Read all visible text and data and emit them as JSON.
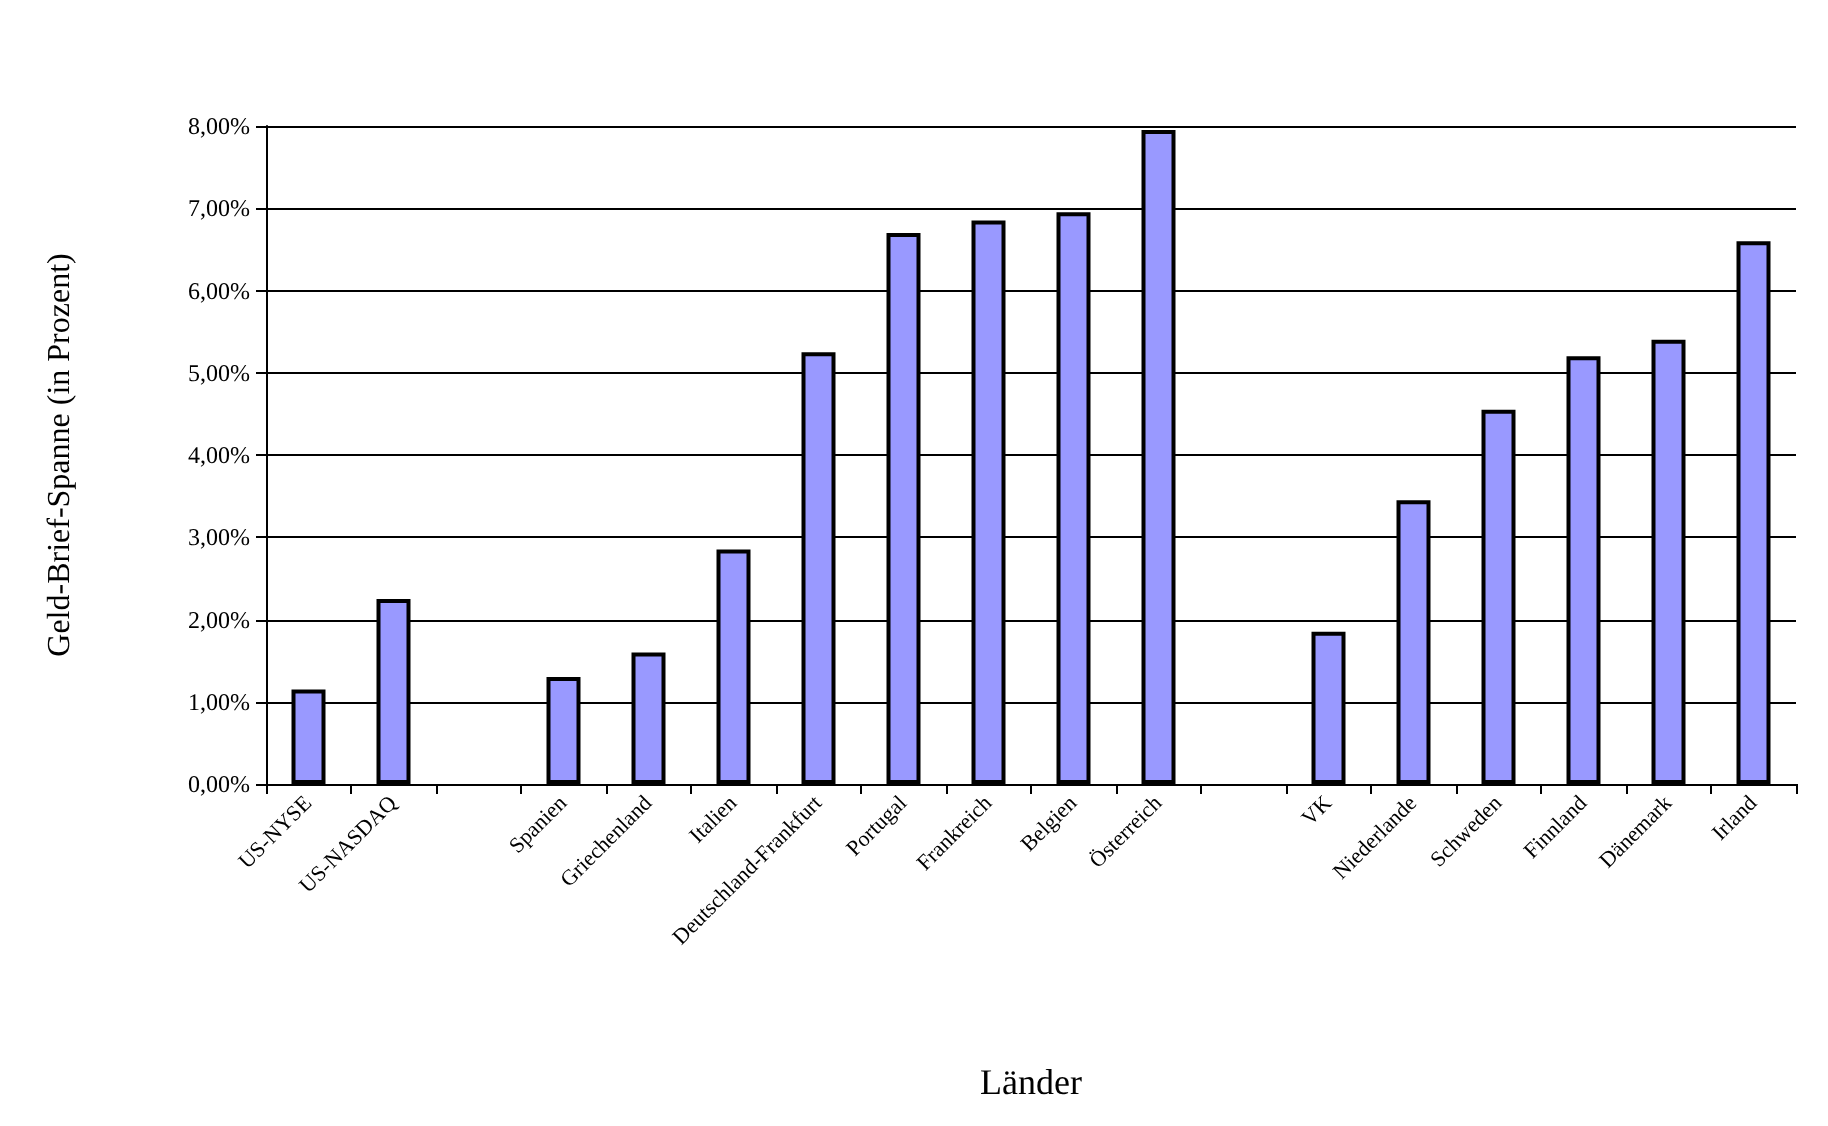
{
  "chart_data": {
    "type": "bar",
    "xlabel": "Länder",
    "ylabel": "Geld-Brief-Spanne (in Prozent)",
    "categories": [
      "US-NYSE",
      "US-NASDAQ",
      null,
      "Spanien",
      "Griechenland",
      "Italien",
      "Deutschland-Frankfurt",
      "Portugal",
      "Frankreich",
      "Belgien",
      "Österreich",
      null,
      "VK",
      "Niederlande",
      "Schweden",
      "Finnland",
      "Dänemark",
      "Irland"
    ],
    "values": [
      1.15,
      2.25,
      null,
      1.3,
      1.6,
      2.85,
      5.25,
      6.7,
      6.85,
      6.95,
      7.95,
      null,
      1.85,
      3.45,
      4.55,
      5.2,
      5.4,
      6.6
    ],
    "color": "#9999ff",
    "ylim": [
      0,
      8
    ],
    "yticks": [
      {
        "value": 0,
        "label": "0,00%"
      },
      {
        "value": 1,
        "label": "1,00%"
      },
      {
        "value": 2,
        "label": "2,00%"
      },
      {
        "value": 3,
        "label": "3,00%"
      },
      {
        "value": 4,
        "label": "4,00%"
      },
      {
        "value": 5,
        "label": "5,00%"
      },
      {
        "value": 6,
        "label": "6,00%"
      },
      {
        "value": 7,
        "label": "7,00%"
      },
      {
        "value": 8,
        "label": "8,00%"
      }
    ],
    "grid": "y"
  }
}
